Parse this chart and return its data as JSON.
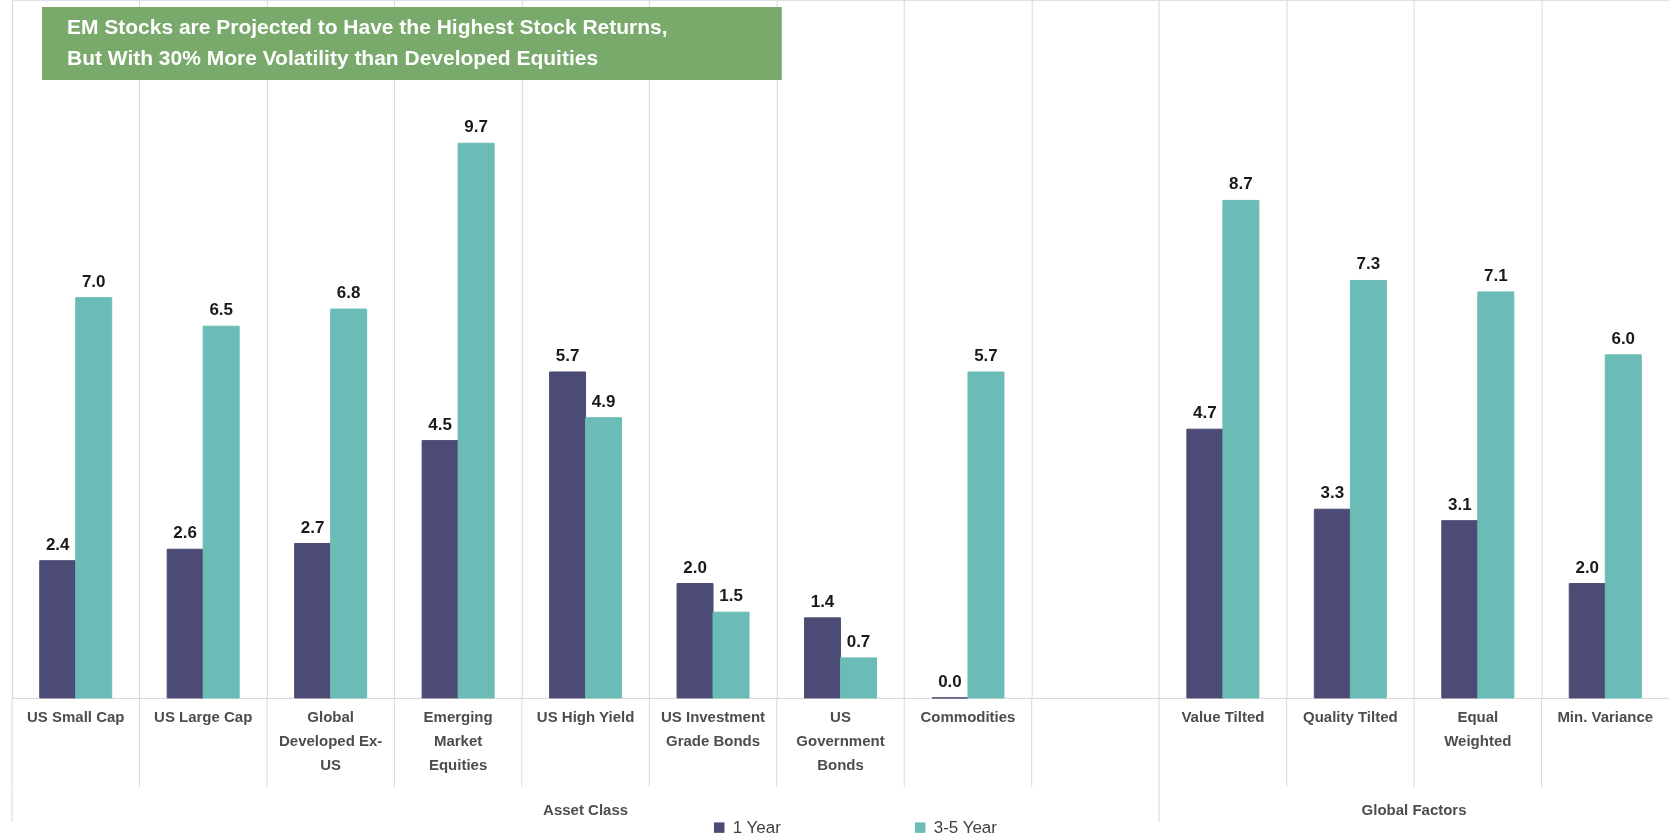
{
  "chart_data": {
    "type": "bar",
    "title": "EM Stocks are Projected to Have the Highest Stock Returns, But With 30% More Volatility than Developed Equities",
    "categories": [
      "US Small Cap",
      "US Large Cap",
      "Global Developed Ex-US",
      "Emerging Market Equities",
      "US High Yield",
      "US Investment Grade Bonds",
      "US Government Bonds",
      "Commodities",
      null,
      "Value Tilted",
      "Quality Tilted",
      "Equal Weighted",
      "Min. Variance"
    ],
    "series": [
      {
        "name": "1 Year",
        "color": "#4b4b75",
        "values": [
          2.4,
          2.6,
          2.7,
          4.5,
          5.7,
          2.0,
          1.4,
          0.0,
          null,
          4.7,
          3.3,
          3.1,
          2.0
        ],
        "value_labels": [
          "2.4",
          "2.6",
          "2.7",
          "4.5",
          "5.7",
          "2.0",
          "1.4",
          "0.0",
          null,
          "4.7",
          "3.3",
          "3.1",
          "2.0"
        ]
      },
      {
        "name": "3-5 Year",
        "color": "#6bbcb6",
        "values": [
          7.0,
          6.5,
          6.8,
          9.7,
          4.9,
          1.5,
          0.7,
          5.7,
          null,
          8.7,
          7.3,
          7.1,
          6.0
        ],
        "value_labels": [
          "7.0",
          "6.5",
          "6.8",
          "9.7",
          "4.9",
          "1.5",
          "0.7",
          "5.7",
          null,
          "8.7",
          "7.3",
          "7.1",
          "6.0"
        ]
      }
    ],
    "annotations": [
      "Asset Class",
      "Global Factors"
    ],
    "grid": "x",
    "legend": "bottom",
    "tick_labels": "x"
  }
}
